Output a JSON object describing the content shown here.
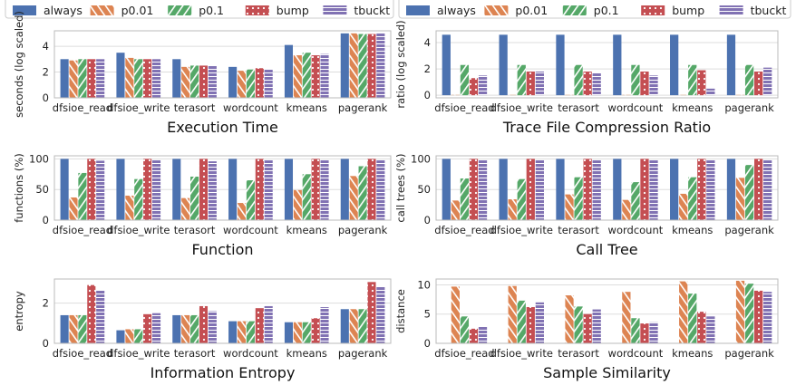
{
  "legend": [
    "always",
    "p0.01",
    "p0.1",
    "bump",
    "tbuckt"
  ],
  "colors": {
    "always": "#4c72b0",
    "p0.01": "#dd8452",
    "p0.1": "#55a868",
    "bump": "#c44e52",
    "tbuckt": "#8172b3"
  },
  "chart_data": [
    {
      "type": "bar",
      "title": "Execution Time",
      "ylabel": "seconds (log scaled)",
      "categories": [
        "dfsioe_read",
        "dfsioe_write",
        "terasort",
        "wordcount",
        "kmeans",
        "pagerank"
      ],
      "ylim": [
        0,
        5.2
      ],
      "yticks": [
        0,
        2,
        4
      ],
      "series": [
        {
          "name": "always",
          "values": [
            3.0,
            3.5,
            3.0,
            2.4,
            4.1,
            5.0
          ]
        },
        {
          "name": "p0.01",
          "values": [
            2.9,
            3.1,
            2.4,
            2.1,
            3.3,
            5.0
          ]
        },
        {
          "name": "p0.1",
          "values": [
            3.0,
            3.0,
            2.5,
            2.2,
            3.5,
            4.95
          ]
        },
        {
          "name": "bump",
          "values": [
            3.0,
            3.0,
            2.5,
            2.3,
            3.3,
            4.95
          ]
        },
        {
          "name": "tbuckt",
          "values": [
            3.0,
            3.0,
            2.5,
            2.2,
            3.4,
            5.0
          ]
        }
      ]
    },
    {
      "type": "bar",
      "title": "Trace File Compression Ratio",
      "ylabel": "ratio (log scaled)",
      "categories": [
        "dfsioe_read",
        "dfsioe_write",
        "terasort",
        "wordcount",
        "kmeans",
        "pagerank"
      ],
      "ylim": [
        -0.2,
        4.9
      ],
      "yticks": [
        0,
        2,
        4
      ],
      "series": [
        {
          "name": "always",
          "values": [
            4.6,
            4.6,
            4.6,
            4.6,
            4.6,
            4.6
          ]
        },
        {
          "name": "p0.01",
          "values": [
            0.02,
            0.02,
            0.02,
            0.02,
            0.02,
            0.02
          ]
        },
        {
          "name": "p0.1",
          "values": [
            2.3,
            2.3,
            2.3,
            2.3,
            2.3,
            2.3
          ]
        },
        {
          "name": "bump",
          "values": [
            1.3,
            1.8,
            1.8,
            1.8,
            1.9,
            1.8
          ]
        },
        {
          "name": "tbuckt",
          "values": [
            1.5,
            1.8,
            1.7,
            1.5,
            0.5,
            2.1
          ]
        }
      ]
    },
    {
      "type": "bar",
      "title": "Function",
      "ylabel": "functions (%)",
      "categories": [
        "dfsioe_read",
        "dfsioe_write",
        "terasort",
        "wordcount",
        "kmeans",
        "pagerank"
      ],
      "ylim": [
        0,
        105
      ],
      "yticks": [
        0,
        50,
        100
      ],
      "series": [
        {
          "name": "always",
          "values": [
            100,
            100,
            100,
            100,
            100,
            100
          ]
        },
        {
          "name": "p0.01",
          "values": [
            37,
            40,
            36,
            28,
            49,
            72
          ]
        },
        {
          "name": "p0.1",
          "values": [
            77,
            67,
            71,
            65,
            75,
            88
          ]
        },
        {
          "name": "bump",
          "values": [
            100,
            100,
            100,
            100,
            100,
            100
          ]
        },
        {
          "name": "tbuckt",
          "values": [
            97,
            98,
            96,
            98,
            98,
            98
          ]
        }
      ]
    },
    {
      "type": "bar",
      "title": "Call Tree",
      "ylabel": "call trees (%)",
      "categories": [
        "dfsioe_read",
        "dfsioe_write",
        "terasort",
        "wordcount",
        "kmeans",
        "pagerank"
      ],
      "ylim": [
        0,
        105
      ],
      "yticks": [
        0,
        50,
        100
      ],
      "series": [
        {
          "name": "always",
          "values": [
            100,
            100,
            100,
            100,
            100,
            100
          ]
        },
        {
          "name": "p0.01",
          "values": [
            32,
            34,
            42,
            33,
            43,
            69
          ]
        },
        {
          "name": "p0.1",
          "values": [
            68,
            67,
            70,
            62,
            70,
            90
          ]
        },
        {
          "name": "bump",
          "values": [
            100,
            100,
            100,
            100,
            100,
            100
          ]
        },
        {
          "name": "tbuckt",
          "values": [
            98,
            98,
            98,
            98,
            98,
            99
          ]
        }
      ]
    },
    {
      "type": "bar",
      "title": "Information Entropy",
      "ylabel": "entropy",
      "categories": [
        "dfsioe_read",
        "dfsioe_write",
        "terasort",
        "wordcount",
        "kmeans",
        "pagerank"
      ],
      "ylim": [
        0,
        3.2
      ],
      "yticks": [
        0,
        2
      ],
      "series": [
        {
          "name": "always",
          "values": [
            1.4,
            0.65,
            1.4,
            1.1,
            1.05,
            1.7
          ]
        },
        {
          "name": "p0.01",
          "values": [
            1.4,
            0.7,
            1.4,
            1.1,
            1.05,
            1.7
          ]
        },
        {
          "name": "p0.1",
          "values": [
            1.4,
            0.7,
            1.4,
            1.1,
            1.05,
            1.7
          ]
        },
        {
          "name": "bump",
          "values": [
            2.9,
            1.45,
            1.85,
            1.75,
            1.25,
            3.05
          ]
        },
        {
          "name": "tbuckt",
          "values": [
            2.65,
            1.5,
            1.6,
            1.85,
            1.8,
            2.8
          ]
        }
      ]
    },
    {
      "type": "bar",
      "title": "Sample Similarity",
      "ylabel": "distance",
      "categories": [
        "dfsioe_read",
        "dfsioe_write",
        "terasort",
        "wordcount",
        "kmeans",
        "pagerank"
      ],
      "ylim": [
        0,
        11
      ],
      "yticks": [
        0,
        5,
        10
      ],
      "series": [
        {
          "name": "always",
          "values": [
            0,
            0,
            0,
            0,
            0,
            0
          ]
        },
        {
          "name": "p0.01",
          "values": [
            9.7,
            9.8,
            8.2,
            8.8,
            10.6,
            10.7
          ]
        },
        {
          "name": "p0.1",
          "values": [
            4.6,
            7.3,
            6.3,
            4.3,
            8.5,
            10.2
          ]
        },
        {
          "name": "bump",
          "values": [
            2.5,
            6.2,
            5.0,
            3.4,
            5.4,
            9.0
          ]
        },
        {
          "name": "tbuckt",
          "values": [
            2.9,
            7.0,
            5.8,
            3.6,
            4.6,
            8.8
          ]
        }
      ]
    }
  ]
}
